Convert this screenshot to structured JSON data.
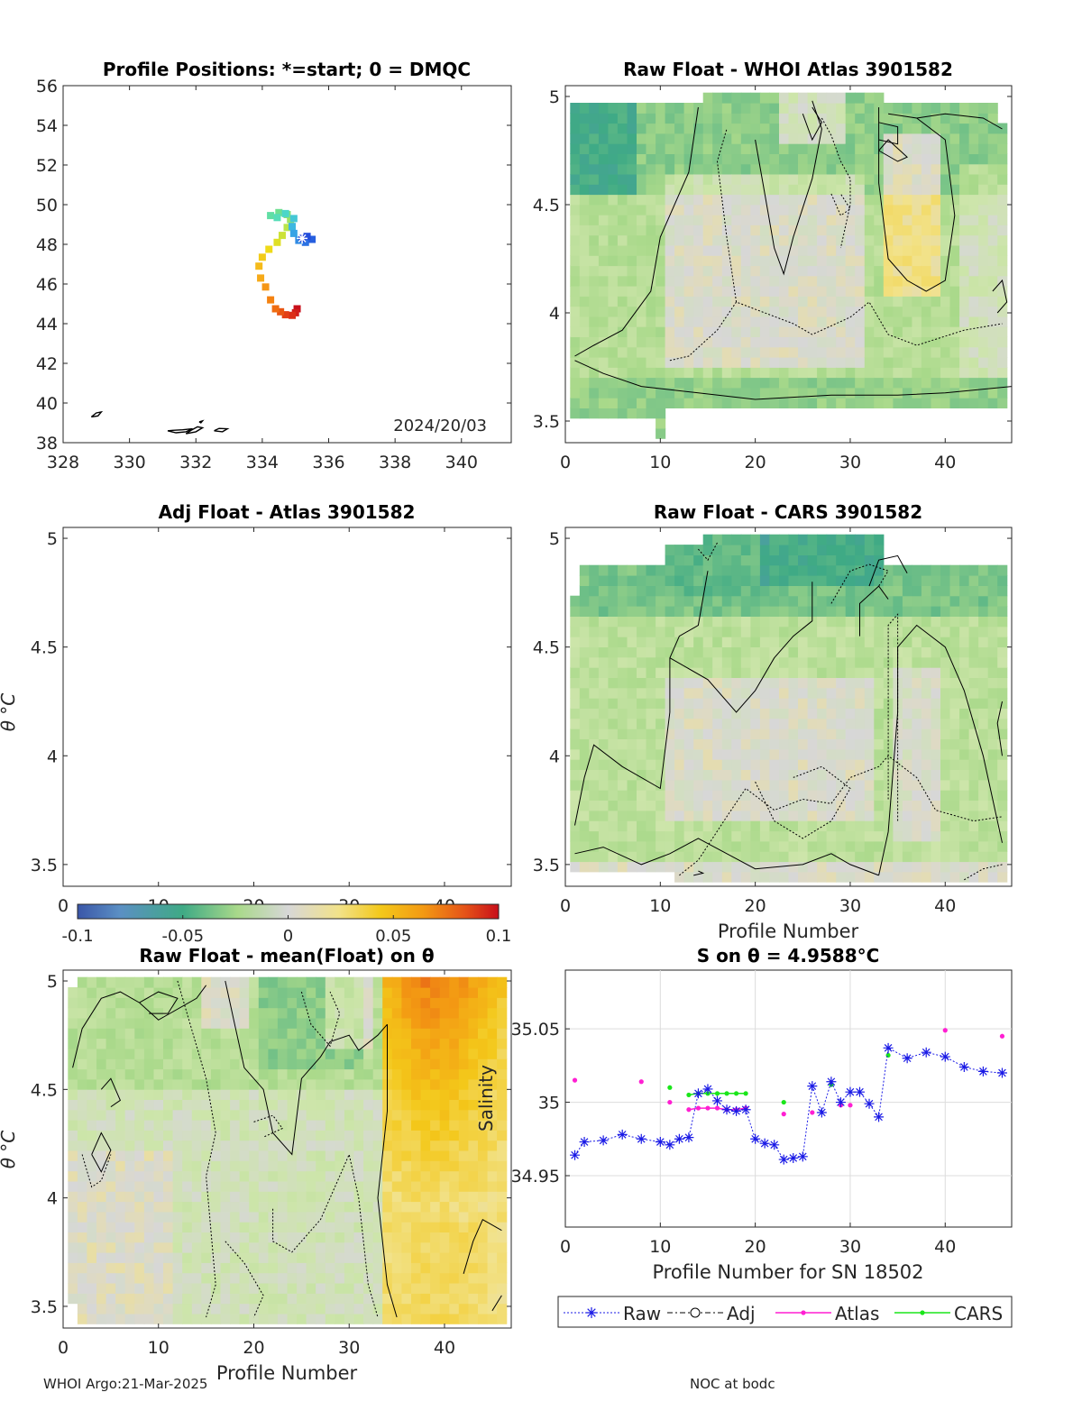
{
  "colors": {
    "colormap": [
      "#3a56a8",
      "#5b8fc4",
      "#3faa85",
      "#8fcf6b",
      "#d6e8a8",
      "#d7d7d7",
      "#f2e28a",
      "#f3c81a",
      "#f39a13",
      "#e55318",
      "#c80f1b"
    ],
    "raw": "#1a1ae6",
    "adj": "#000000",
    "atlas": "#ff1fd2",
    "cars": "#1ae61a",
    "trackStart": "#c80f1b",
    "trackEnd": "#1d3bd6"
  },
  "footer": {
    "left": "WHOI Argo:21-Mar-2025",
    "right": "NOC at bodc"
  },
  "chart_data": [
    {
      "id": "positions",
      "type": "scatter",
      "title": "Profile Positions: *=start; 0 = DMQC",
      "xlim": [
        328,
        341.5
      ],
      "ylim": [
        38,
        56
      ],
      "xticks": [
        328,
        330,
        332,
        334,
        336,
        338,
        340
      ],
      "yticks": [
        38,
        40,
        42,
        44,
        46,
        48,
        50,
        52,
        54,
        56
      ],
      "annotation": "2024/20/03",
      "track": [
        [
          335.05,
          44.75
        ],
        [
          335.0,
          44.55
        ],
        [
          334.9,
          44.42
        ],
        [
          334.7,
          44.45
        ],
        [
          334.55,
          44.6
        ],
        [
          334.4,
          44.75
        ],
        [
          334.25,
          45.2
        ],
        [
          334.1,
          45.85
        ],
        [
          333.95,
          46.3
        ],
        [
          333.9,
          46.9
        ],
        [
          334.0,
          47.35
        ],
        [
          334.2,
          47.75
        ],
        [
          334.45,
          48.1
        ],
        [
          334.6,
          48.45
        ],
        [
          334.75,
          48.85
        ],
        [
          334.85,
          49.25
        ],
        [
          334.75,
          49.5
        ],
        [
          334.5,
          49.6
        ],
        [
          334.25,
          49.45
        ],
        [
          334.45,
          49.35
        ],
        [
          334.7,
          49.55
        ],
        [
          334.95,
          49.3
        ],
        [
          334.9,
          48.9
        ],
        [
          334.95,
          48.55
        ],
        [
          335.1,
          48.2
        ],
        [
          335.3,
          48.1
        ],
        [
          335.5,
          48.25
        ],
        [
          335.35,
          48.4
        ],
        [
          335.2,
          48.3
        ]
      ],
      "coast": [
        [
          [
            328.85,
            39.3
          ],
          [
            329.0,
            39.5
          ],
          [
            329.15,
            39.55
          ],
          [
            329.05,
            39.35
          ],
          [
            328.85,
            39.3
          ]
        ],
        [
          [
            331.15,
            38.6
          ],
          [
            331.4,
            38.5
          ],
          [
            331.7,
            38.55
          ],
          [
            331.9,
            38.7
          ],
          [
            331.6,
            38.65
          ],
          [
            331.3,
            38.62
          ],
          [
            331.15,
            38.6
          ]
        ],
        [
          [
            331.7,
            38.45
          ],
          [
            332.0,
            38.55
          ],
          [
            332.2,
            38.75
          ],
          [
            332.05,
            38.8
          ],
          [
            331.85,
            38.62
          ],
          [
            331.7,
            38.45
          ]
        ],
        [
          [
            332.55,
            38.6
          ],
          [
            332.8,
            38.55
          ],
          [
            332.95,
            38.7
          ],
          [
            332.7,
            38.72
          ],
          [
            332.55,
            38.6
          ]
        ],
        [
          [
            332.1,
            39.05
          ],
          [
            332.2,
            39.1
          ],
          [
            332.15,
            39.0
          ],
          [
            332.1,
            39.05
          ]
        ]
      ]
    },
    {
      "id": "whoi",
      "type": "heatmap",
      "title": "Raw Float - WHOI Atlas  3901582",
      "xlim": [
        0,
        47
      ],
      "ylim": [
        3.4,
        5.05
      ],
      "xticks": [
        0,
        10,
        20,
        30,
        40
      ],
      "yticks": [
        3.5,
        4,
        4.5,
        5
      ],
      "yticklabels": [
        "3.5",
        "4",
        "4.5",
        "5"
      ],
      "xlabel": "",
      "ylabel": ""
    },
    {
      "id": "adj",
      "type": "heatmap",
      "title": "Adj Float - Atlas  3901582",
      "xlim": [
        0,
        47
      ],
      "ylim": [
        3.4,
        5.05
      ],
      "xticks": [
        0,
        10,
        20,
        30,
        40
      ],
      "yticks": [
        3.5,
        4,
        4.5,
        5
      ],
      "yticklabels": [
        "3.5",
        "4",
        "4.5",
        "5"
      ],
      "xlabel": "",
      "ylabel": "θ °C"
    },
    {
      "id": "cars",
      "type": "heatmap",
      "title": "Raw Float - CARS  3901582",
      "xlim": [
        0,
        47
      ],
      "ylim": [
        3.4,
        5.05
      ],
      "xticks": [
        0,
        10,
        20,
        30,
        40
      ],
      "yticks": [
        3.5,
        4,
        4.5,
        5
      ],
      "yticklabels": [
        "3.5",
        "4",
        "4.5",
        "5"
      ],
      "xlabel": "Profile Number",
      "ylabel": ""
    },
    {
      "id": "colorbar",
      "type": "heatmap",
      "clim": [
        -0.1,
        0.1
      ],
      "ticks": [
        -0.1,
        -0.05,
        0,
        0.05,
        0.1
      ],
      "ticklabels": [
        "-0.1",
        "-0.05",
        "0",
        "0.05",
        "0.1"
      ],
      "label": "Salinity"
    },
    {
      "id": "mean",
      "type": "heatmap",
      "title": "Raw Float - mean(Float) on θ",
      "xlim": [
        0,
        47
      ],
      "ylim": [
        3.4,
        5.05
      ],
      "xticks": [
        0,
        10,
        20,
        30,
        40
      ],
      "yticks": [
        3.5,
        4,
        4.5,
        5
      ],
      "yticklabels": [
        "3.5",
        "4",
        "4.5",
        "5"
      ],
      "xlabel": "Profile Number",
      "ylabel": "θ °C"
    },
    {
      "id": "sontheta",
      "type": "line",
      "title": "S on θ = 4.9588°C",
      "xlabel": "Profile Number for SN 18502",
      "xlim": [
        0,
        47
      ],
      "ylim": [
        34.915,
        35.09
      ],
      "xticks": [
        0,
        10,
        20,
        30,
        40
      ],
      "yticks": [
        34.95,
        35,
        35.05
      ],
      "yticklabels": [
        "34.95",
        "35",
        "35.05"
      ],
      "grid": true,
      "legend": [
        "Raw",
        "Adj",
        "Atlas",
        "CARS"
      ],
      "series": [
        {
          "name": "Raw",
          "x": [
            1,
            2,
            4,
            6,
            8,
            10,
            11,
            12,
            13,
            14,
            15,
            16,
            17,
            18,
            19,
            20,
            21,
            22,
            23,
            24,
            25,
            26,
            27,
            28,
            29,
            30,
            31,
            32,
            33,
            34,
            36,
            38,
            40,
            42,
            44,
            46
          ],
          "y": [
            34.964,
            34.973,
            34.974,
            34.978,
            34.975,
            34.973,
            34.971,
            34.975,
            34.976,
            35.006,
            35.009,
            35.001,
            34.995,
            34.994,
            34.995,
            34.975,
            34.972,
            34.971,
            34.961,
            34.962,
            34.963,
            35.011,
            34.993,
            35.014,
            35.0,
            35.007,
            35.007,
            34.999,
            34.99,
            35.037,
            35.03,
            35.034,
            35.031,
            35.024,
            35.021,
            35.02
          ]
        },
        {
          "name": "Atlas",
          "segments": [
            [
              [
                13,
                34.995
              ],
              [
                14,
                34.996
              ],
              [
                15,
                34.996
              ],
              [
                16,
                34.996
              ],
              [
                17,
                34.995
              ],
              [
                18,
                34.995
              ],
              [
                19,
                34.996
              ]
            ]
          ],
          "points": [
            [
              1,
              35.015
            ],
            [
              8,
              35.014
            ],
            [
              11,
              35.0
            ],
            [
              23,
              34.992
            ],
            [
              26,
              34.993
            ],
            [
              29,
              34.998
            ],
            [
              30,
              34.998
            ],
            [
              40,
              35.049
            ],
            [
              46,
              35.045
            ]
          ]
        },
        {
          "name": "CARS",
          "segments": [
            [
              [
                13,
                35.005
              ],
              [
                14,
                35.006
              ],
              [
                15,
                35.006
              ],
              [
                16,
                35.006
              ],
              [
                17,
                35.006
              ],
              [
                18,
                35.006
              ],
              [
                19,
                35.006
              ]
            ]
          ],
          "points": [
            [
              11,
              35.01
            ],
            [
              23,
              35.0
            ],
            [
              28,
              35.012
            ],
            [
              34,
              35.032
            ]
          ]
        }
      ]
    }
  ]
}
